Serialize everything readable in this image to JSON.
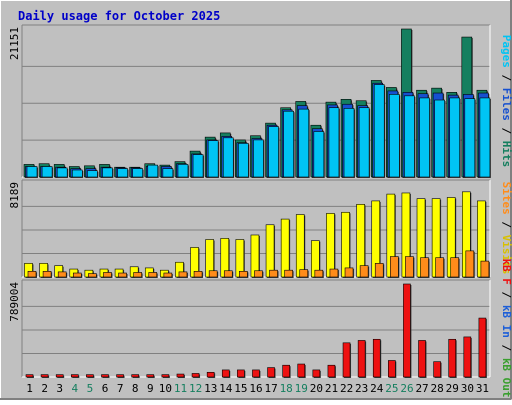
{
  "chart_data": [
    {
      "type": "bar",
      "title": "Daily usage for October 2025",
      "categories": [
        "1",
        "2",
        "3",
        "4",
        "5",
        "6",
        "7",
        "8",
        "9",
        "10",
        "11",
        "12",
        "13",
        "14",
        "15",
        "16",
        "17",
        "18",
        "19",
        "20",
        "21",
        "22",
        "23",
        "24",
        "25",
        "26",
        "27",
        "28",
        "29",
        "30",
        "31"
      ],
      "weekend_days": [
        "4",
        "5",
        "11",
        "12",
        "18",
        "19",
        "25",
        "26"
      ],
      "ylabel_max": "21151",
      "ylim": [
        0,
        21151
      ],
      "grid": true,
      "legend_side": "right",
      "series": [
        {
          "name": "Hits",
          "color": "#157f5f",
          "values": [
            1800,
            1900,
            1800,
            1500,
            1600,
            1800,
            1400,
            1400,
            1900,
            1700,
            2200,
            3700,
            5700,
            6300,
            5300,
            5900,
            7700,
            9900,
            10800,
            7400,
            10700,
            11100,
            10900,
            13800,
            12800,
            21151,
            12400,
            12700,
            12100,
            20000,
            12400
          ]
        },
        {
          "name": "Files",
          "color": "#1650d0",
          "values": [
            1500,
            1500,
            1400,
            1200,
            1200,
            1400,
            1300,
            1300,
            1500,
            1500,
            1900,
            3300,
            5300,
            5800,
            4900,
            5500,
            7400,
            9600,
            10200,
            6900,
            10300,
            10400,
            10200,
            13400,
            12300,
            12100,
            11900,
            12000,
            11700,
            11800,
            12000
          ]
        },
        {
          "name": "Pages",
          "color": "#00c4f4",
          "values": [
            1500,
            1500,
            1300,
            1000,
            900,
            1300,
            1200,
            1200,
            1700,
            1200,
            1800,
            3200,
            5200,
            5600,
            4800,
            5300,
            7200,
            9400,
            9700,
            6500,
            9900,
            9800,
            9900,
            13200,
            11800,
            11600,
            11300,
            11000,
            11300,
            11200,
            11300
          ]
        }
      ]
    },
    {
      "type": "bar",
      "ylabel_max": "8189",
      "ylim": [
        0,
        8189
      ],
      "grid": true,
      "legend_side": "right",
      "series": [
        {
          "name": "Visits",
          "color": "#ffff00",
          "values": [
            1200,
            1200,
            1000,
            700,
            600,
            700,
            700,
            900,
            800,
            600,
            1300,
            2600,
            3300,
            3400,
            3300,
            3700,
            4600,
            5100,
            5500,
            3200,
            5600,
            5700,
            6400,
            6700,
            7300,
            7400,
            6900,
            6900,
            7000,
            7500,
            6700
          ]
        },
        {
          "name": "Sites",
          "color": "#ff8c1a",
          "values": [
            500,
            500,
            450,
            350,
            300,
            400,
            350,
            400,
            400,
            350,
            450,
            500,
            550,
            550,
            500,
            550,
            600,
            600,
            650,
            600,
            700,
            800,
            1000,
            1200,
            1800,
            1800,
            1700,
            1700,
            1700,
            2300,
            1400
          ]
        }
      ]
    },
    {
      "type": "bar",
      "ylabel_max": "789004",
      "ylim": [
        0,
        789004
      ],
      "grid": true,
      "legend_side": "right",
      "series": [
        {
          "name": "KB F",
          "color": "#ee1111",
          "values": [
            20000,
            20000,
            20000,
            20000,
            20000,
            20000,
            20000,
            20000,
            20000,
            20000,
            25000,
            30000,
            40000,
            60000,
            60000,
            60000,
            80000,
            100000,
            110000,
            60000,
            100000,
            290000,
            310000,
            320000,
            140000,
            789004,
            310000,
            130000,
            320000,
            340000,
            500000
          ]
        },
        {
          "name": "KB In",
          "color": "#1d5fd8",
          "values": []
        },
        {
          "name": "KB Out",
          "color": "#3a9f2f",
          "values": []
        }
      ]
    }
  ],
  "right_legends": {
    "panel1": [
      {
        "text": "Pages",
        "color": "#00c4f4"
      },
      {
        "text": " / ",
        "color": "#000000"
      },
      {
        "text": "Files",
        "color": "#1650d0"
      },
      {
        "text": " / ",
        "color": "#000000"
      },
      {
        "text": "Hits",
        "color": "#157f5f"
      }
    ],
    "panel2": [
      {
        "text": "Sites",
        "color": "#ff8c1a"
      },
      {
        "text": " / ",
        "color": "#000000"
      },
      {
        "text": "Visits",
        "color": "#d8c000"
      }
    ],
    "panel3": [
      {
        "text": "kB F",
        "color": "#ee1111"
      },
      {
        "text": " / ",
        "color": "#000000"
      },
      {
        "text": "kB In",
        "color": "#1d5fd8"
      },
      {
        "text": " / ",
        "color": "#000000"
      },
      {
        "text": "kB Out",
        "color": "#3a9f2f"
      }
    ]
  },
  "colors": {
    "background": "#c0c0c0",
    "panel_bg": "#c0c0c0",
    "title": "#0000c8",
    "weekday_label": "#000000",
    "weekend_label": "#157f5f"
  }
}
